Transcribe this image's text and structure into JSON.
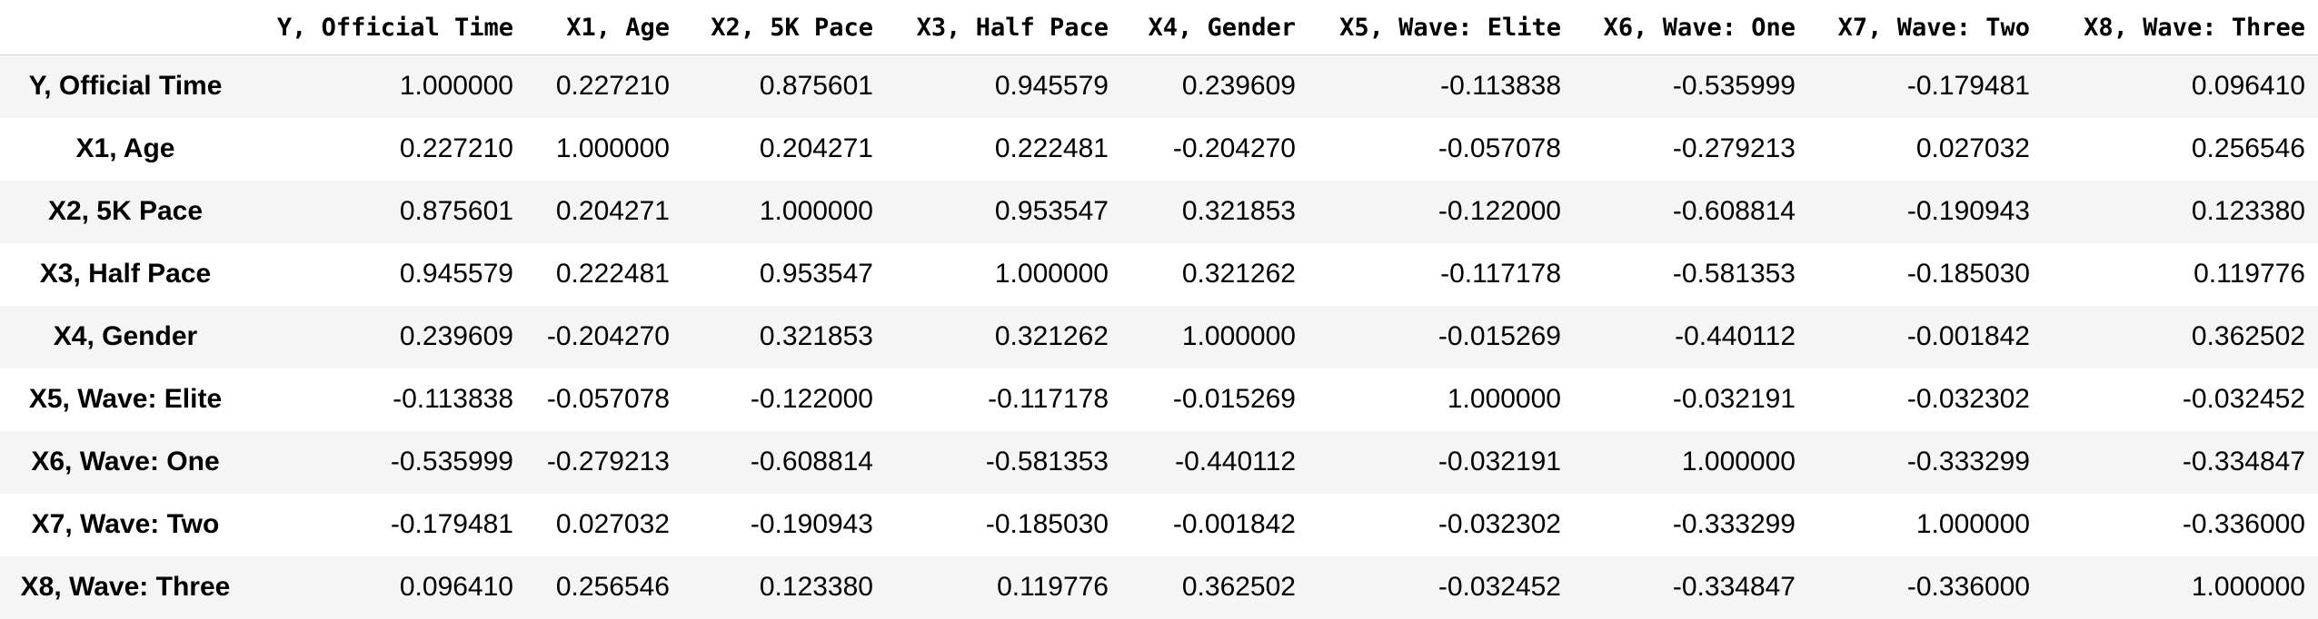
{
  "columns": [
    "Y, Official Time",
    "X1, Age",
    "X2, 5K Pace",
    "X3, Half Pace",
    "X4, Gender",
    "X5, Wave: Elite",
    "X6, Wave: One",
    "X7, Wave: Two",
    "X8, Wave: Three"
  ],
  "rows": [
    {
      "label": "Y, Official Time",
      "values": [
        "1.000000",
        "0.227210",
        "0.875601",
        "0.945579",
        "0.239609",
        "-0.113838",
        "-0.535999",
        "-0.179481",
        "0.096410"
      ]
    },
    {
      "label": "X1, Age",
      "values": [
        "0.227210",
        "1.000000",
        "0.204271",
        "0.222481",
        "-0.204270",
        "-0.057078",
        "-0.279213",
        "0.027032",
        "0.256546"
      ]
    },
    {
      "label": "X2, 5K Pace",
      "values": [
        "0.875601",
        "0.204271",
        "1.000000",
        "0.953547",
        "0.321853",
        "-0.122000",
        "-0.608814",
        "-0.190943",
        "0.123380"
      ]
    },
    {
      "label": "X3, Half Pace",
      "values": [
        "0.945579",
        "0.222481",
        "0.953547",
        "1.000000",
        "0.321262",
        "-0.117178",
        "-0.581353",
        "-0.185030",
        "0.119776"
      ]
    },
    {
      "label": "X4, Gender",
      "values": [
        "0.239609",
        "-0.204270",
        "0.321853",
        "0.321262",
        "1.000000",
        "-0.015269",
        "-0.440112",
        "-0.001842",
        "0.362502"
      ]
    },
    {
      "label": "X5, Wave: Elite",
      "values": [
        "-0.113838",
        "-0.057078",
        "-0.122000",
        "-0.117178",
        "-0.015269",
        "1.000000",
        "-0.032191",
        "-0.032302",
        "-0.032452"
      ]
    },
    {
      "label": "X6, Wave: One",
      "values": [
        "-0.535999",
        "-0.279213",
        "-0.608814",
        "-0.581353",
        "-0.440112",
        "-0.032191",
        "1.000000",
        "-0.333299",
        "-0.334847"
      ]
    },
    {
      "label": "X7, Wave: Two",
      "values": [
        "-0.179481",
        "0.027032",
        "-0.190943",
        "-0.185030",
        "-0.001842",
        "-0.032302",
        "-0.333299",
        "1.000000",
        "-0.336000"
      ]
    },
    {
      "label": "X8, Wave: Three",
      "values": [
        "0.096410",
        "0.256546",
        "0.123380",
        "0.119776",
        "0.362502",
        "-0.032452",
        "-0.334847",
        "-0.336000",
        "1.000000"
      ]
    }
  ]
}
